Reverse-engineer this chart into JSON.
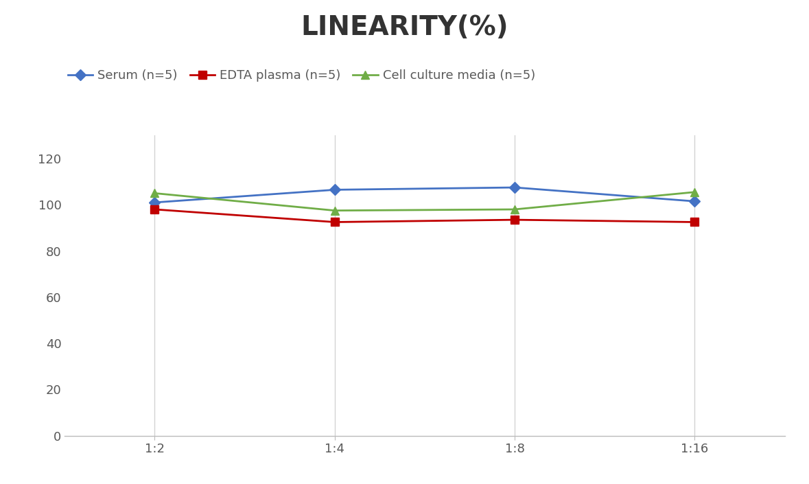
{
  "title": "LINEARITY(%)",
  "title_fontsize": 28,
  "title_fontweight": "bold",
  "x_labels": [
    "1:2",
    "1:4",
    "1:8",
    "1:16"
  ],
  "x_positions": [
    0,
    1,
    2,
    3
  ],
  "series": [
    {
      "label": "Serum (n=5)",
      "values": [
        101,
        106.5,
        107.5,
        101.5
      ],
      "color": "#4472C4",
      "marker": "D",
      "marker_size": 8,
      "linewidth": 2
    },
    {
      "label": "EDTA plasma (n=5)",
      "values": [
        98,
        92.5,
        93.5,
        92.5
      ],
      "color": "#C00000",
      "marker": "s",
      "marker_size": 8,
      "linewidth": 2
    },
    {
      "label": "Cell culture media (n=5)",
      "values": [
        105,
        97.5,
        98,
        105.5
      ],
      "color": "#70AD47",
      "marker": "^",
      "marker_size": 9,
      "linewidth": 2
    }
  ],
  "ylim": [
    0,
    130
  ],
  "yticks": [
    0,
    20,
    40,
    60,
    80,
    100,
    120
  ],
  "background_color": "#ffffff",
  "grid_color": "#d3d3d3",
  "legend_fontsize": 13,
  "tick_fontsize": 13,
  "axis_label_color": "#595959",
  "title_color": "#333333"
}
